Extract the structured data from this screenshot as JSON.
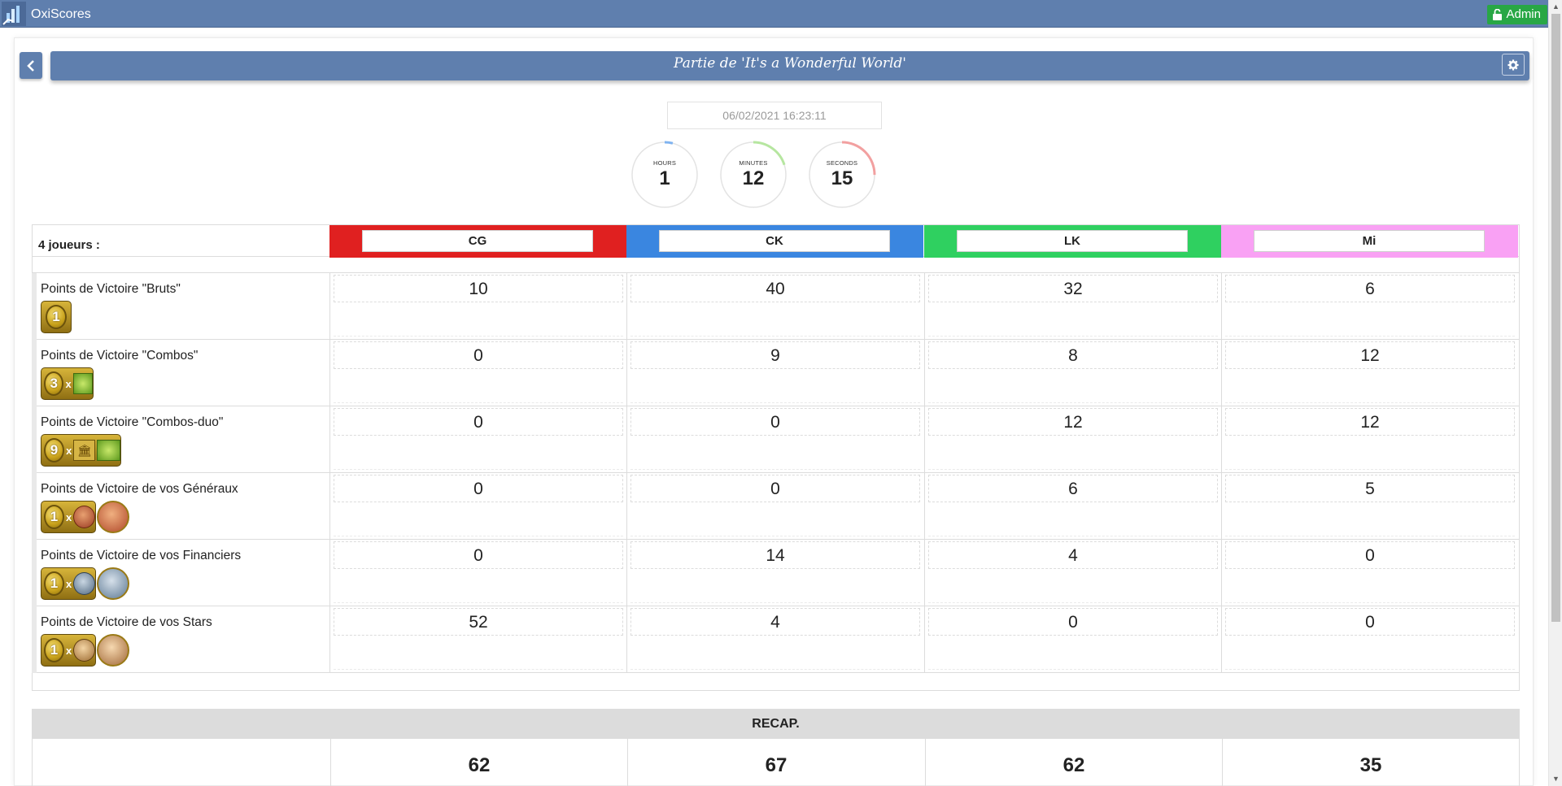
{
  "app": {
    "title": "OxiScores",
    "admin_label": "Admin"
  },
  "header": {
    "title": "Partie de 'It's a Wonderful World'"
  },
  "datetime": "06/02/2021 16:23:11",
  "timers": [
    {
      "label": "HOURS",
      "value": "1",
      "color": "#7fb3f0",
      "fraction": 0.04
    },
    {
      "label": "MINUTES",
      "value": "12",
      "color": "#b6e6a0",
      "fraction": 0.2
    },
    {
      "label": "SECONDS",
      "value": "15",
      "color": "#f2a0a0",
      "fraction": 0.25
    }
  ],
  "table": {
    "players_count_label": "4 joueurs :",
    "players": [
      {
        "name": "CG",
        "color": "#e02020"
      },
      {
        "name": "CK",
        "color": "#3a86e0"
      },
      {
        "name": "LK",
        "color": "#2fd060"
      },
      {
        "name": "Mi",
        "color": "#f9a1f4"
      }
    ],
    "categories": [
      {
        "label": "Points de Victoire \"Bruts\"",
        "icon": "victory-coin-icon",
        "scores": [
          "10",
          "40",
          "32",
          "6"
        ]
      },
      {
        "label": "Points de Victoire \"Combos\"",
        "icon": "combo-development-icon",
        "scores": [
          "0",
          "9",
          "8",
          "12"
        ]
      },
      {
        "label": "Points de Victoire \"Combos-duo\"",
        "icon": "combo-duo-icon",
        "scores": [
          "0",
          "0",
          "12",
          "12"
        ]
      },
      {
        "label": "Points de Victoire de vos Généraux",
        "icon": "generals-icon",
        "scores": [
          "0",
          "0",
          "6",
          "5"
        ]
      },
      {
        "label": "Points de Victoire de vos Financiers",
        "icon": "financiers-icon",
        "scores": [
          "0",
          "14",
          "4",
          "0"
        ]
      },
      {
        "label": "Points de Victoire de vos Stars",
        "icon": "stars-icon",
        "scores": [
          "52",
          "4",
          "0",
          "0"
        ]
      }
    ],
    "recap_label": "RECAP.",
    "totals": [
      "62",
      "67",
      "62",
      "35"
    ]
  }
}
